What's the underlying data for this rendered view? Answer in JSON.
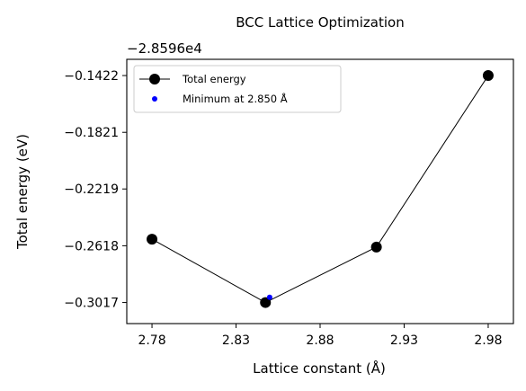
{
  "chart_data": {
    "type": "line",
    "title": "BCC Lattice Optimization",
    "xlabel": "Lattice constant (Å)",
    "ylabel": "Total energy (eV)",
    "offset_text": "−2.8596e4",
    "xlim": [
      2.765,
      2.995
    ],
    "ylim": [
      -0.3165,
      -0.1308
    ],
    "x_ticks": [
      2.78,
      2.83,
      2.88,
      2.93,
      2.98
    ],
    "x_tick_labels": [
      "2.78",
      "2.83",
      "2.88",
      "2.93",
      "2.98"
    ],
    "y_ticks": [
      -0.1422,
      -0.1821,
      -0.2219,
      -0.2618,
      -0.3017
    ],
    "y_tick_labels": [
      "−0.1422",
      "−0.1821",
      "−0.2219",
      "−0.2618",
      "−0.3017"
    ],
    "grid": false,
    "legend_position": "top-left",
    "series": [
      {
        "name": "Total energy",
        "color": "#000000",
        "marker": "circle",
        "x": [
          2.78,
          2.8475,
          2.9135,
          2.98
        ],
        "y": [
          -0.2572,
          -0.3017,
          -0.2627,
          -0.1422
        ]
      },
      {
        "name": "Minimum at 2.850 Å",
        "color": "#0000ff",
        "marker": "dot",
        "x": [
          2.85
        ],
        "y": [
          -0.298
        ]
      }
    ]
  }
}
